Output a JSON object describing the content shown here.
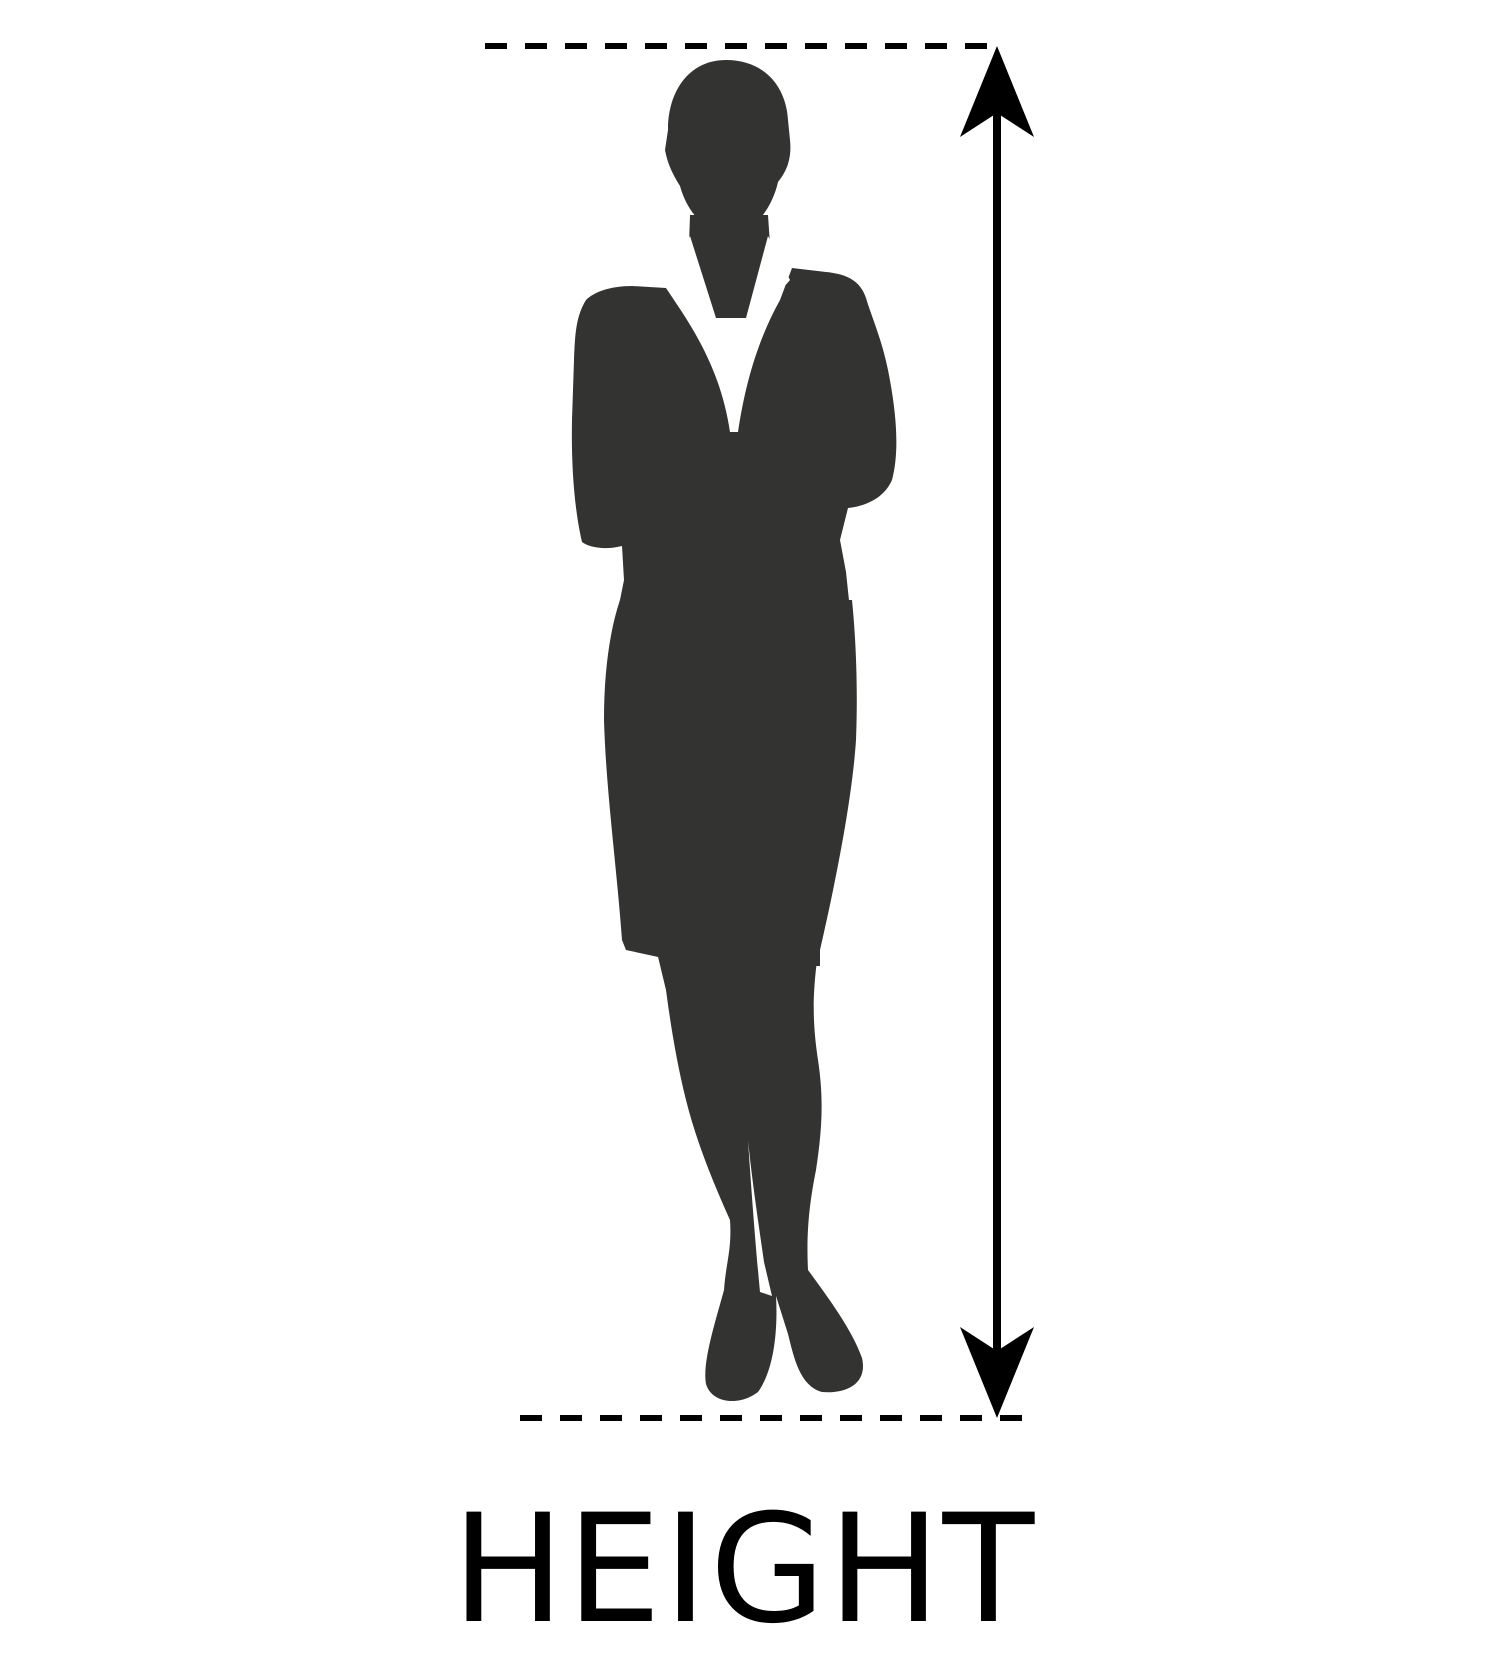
{
  "caption": "HEIGHT",
  "colors": {
    "silhouette": "#333331",
    "lines": "#000000",
    "background": "#ffffff"
  },
  "icons": {
    "figure": "woman-in-suit-silhouette-icon",
    "arrow": "double-headed-vertical-arrow-icon"
  }
}
